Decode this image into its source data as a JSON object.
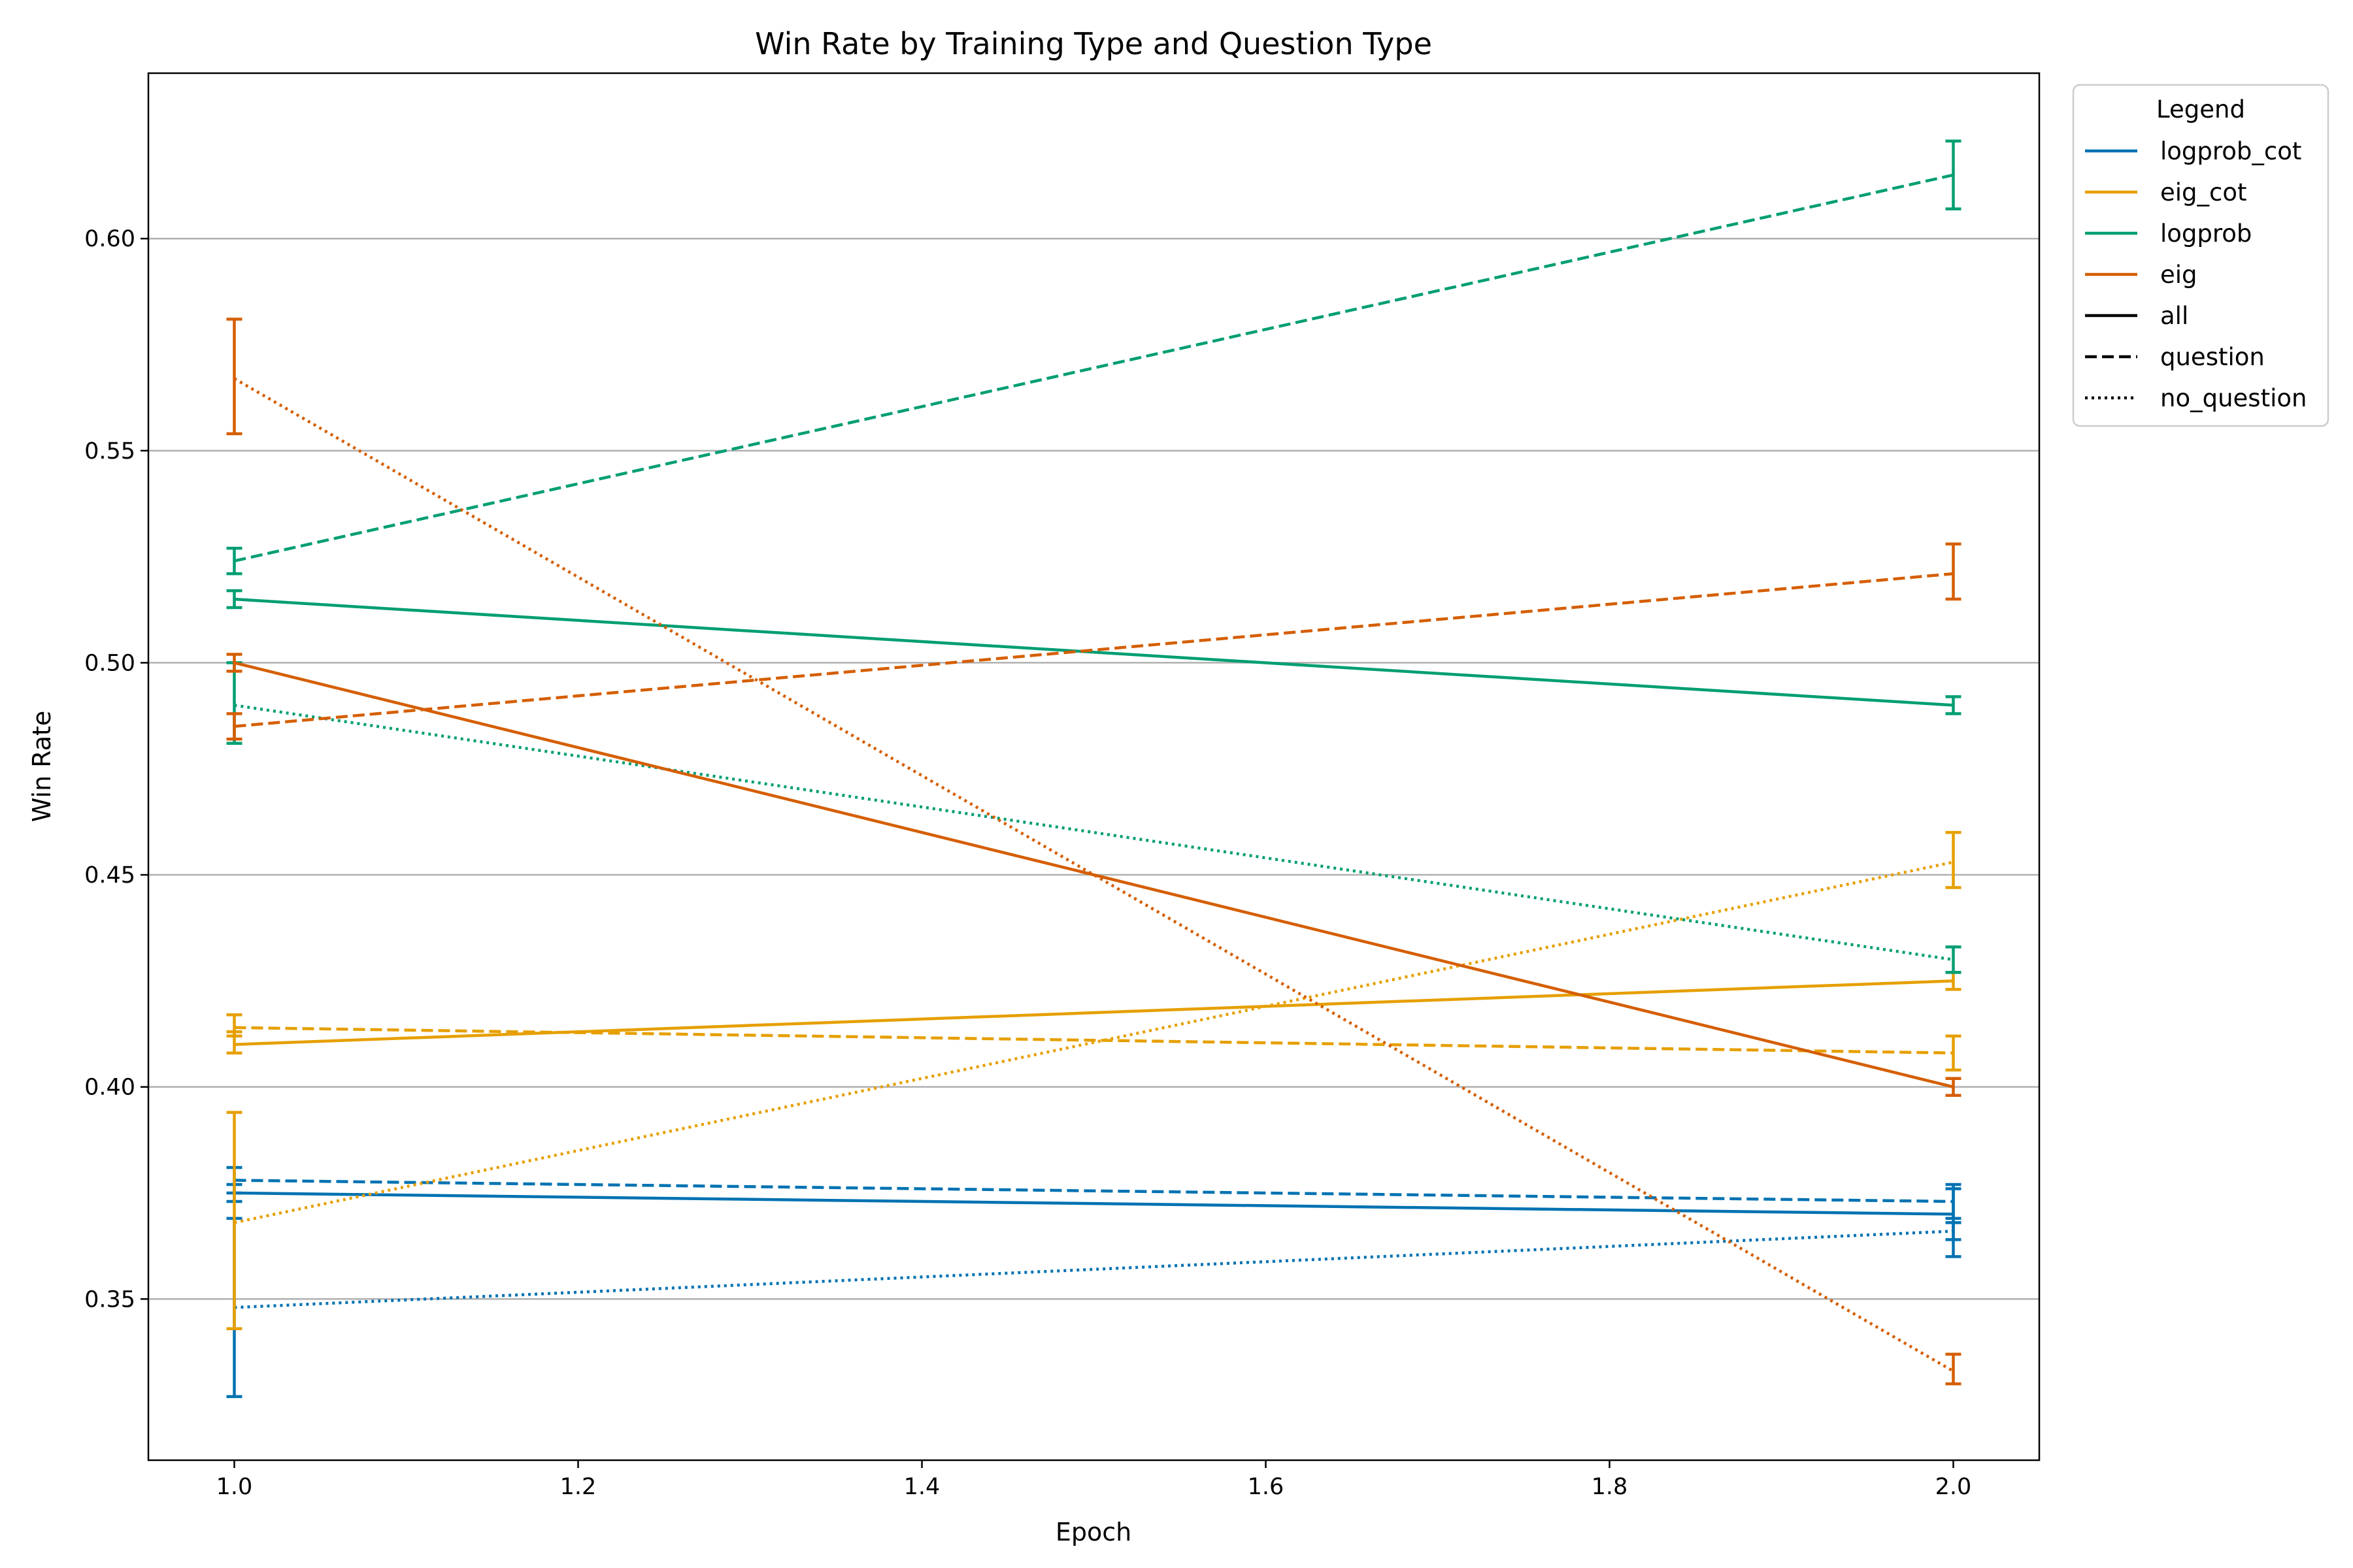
{
  "chart_data": {
    "type": "line",
    "title": "Win Rate by Training Type and Question Type",
    "xlabel": "Epoch",
    "ylabel": "Win Rate",
    "xlim": [
      0.95,
      2.05
    ],
    "ylim": [
      0.312,
      0.639
    ],
    "xticks": [
      "1.0",
      "1.2",
      "1.4",
      "1.6",
      "1.8",
      "2.0"
    ],
    "yticks": [
      "0.35",
      "0.40",
      "0.45",
      "0.50",
      "0.55",
      "0.60"
    ],
    "grid": "horizontal",
    "legend": {
      "title": "Legend",
      "placement": "outside-top-right",
      "colors": [
        {
          "label": "logprob_cot",
          "color": "#0072B2"
        },
        {
          "label": "eig_cot",
          "color": "#E69F00"
        },
        {
          "label": "logprob",
          "color": "#009E73"
        },
        {
          "label": "eig",
          "color": "#D55E00"
        }
      ],
      "styles": [
        {
          "label": "all",
          "dash": "solid"
        },
        {
          "label": "question",
          "dash": "dashed"
        },
        {
          "label": "no_question",
          "dash": "dotted"
        }
      ]
    },
    "series": [
      {
        "training": "logprob_cot",
        "question_type": "all",
        "color": "#0072B2",
        "dash": "solid",
        "x": [
          1.0,
          2.0
        ],
        "y": [
          0.375,
          0.37
        ],
        "err_low": [
          0.373,
          0.36
        ],
        "err_high": [
          0.377,
          0.377
        ]
      },
      {
        "training": "logprob_cot",
        "question_type": "question",
        "color": "#0072B2",
        "dash": "dashed",
        "x": [
          1.0,
          2.0
        ],
        "y": [
          0.378,
          0.373
        ],
        "err_low": [
          0.375,
          0.369
        ],
        "err_high": [
          0.381,
          0.376
        ]
      },
      {
        "training": "logprob_cot",
        "question_type": "no_question",
        "color": "#0072B2",
        "dash": "dotted",
        "x": [
          1.0,
          2.0
        ],
        "y": [
          0.348,
          0.366
        ],
        "err_low": [
          0.327,
          0.364
        ],
        "err_high": [
          0.369,
          0.368
        ]
      },
      {
        "training": "eig_cot",
        "question_type": "all",
        "color": "#E69F00",
        "dash": "solid",
        "x": [
          1.0,
          2.0
        ],
        "y": [
          0.41,
          0.425
        ],
        "err_low": [
          0.408,
          0.423
        ],
        "err_high": [
          0.413,
          0.427
        ]
      },
      {
        "training": "eig_cot",
        "question_type": "question",
        "color": "#E69F00",
        "dash": "dashed",
        "x": [
          1.0,
          2.0
        ],
        "y": [
          0.414,
          0.408
        ],
        "err_low": [
          0.412,
          0.404
        ],
        "err_high": [
          0.417,
          0.412
        ]
      },
      {
        "training": "eig_cot",
        "question_type": "no_question",
        "color": "#E69F00",
        "dash": "dotted",
        "x": [
          1.0,
          2.0
        ],
        "y": [
          0.368,
          0.453
        ],
        "err_low": [
          0.343,
          0.447
        ],
        "err_high": [
          0.394,
          0.46
        ]
      },
      {
        "training": "logprob",
        "question_type": "all",
        "color": "#009E73",
        "dash": "solid",
        "x": [
          1.0,
          2.0
        ],
        "y": [
          0.515,
          0.49
        ],
        "err_low": [
          0.513,
          0.488
        ],
        "err_high": [
          0.517,
          0.492
        ]
      },
      {
        "training": "logprob",
        "question_type": "question",
        "color": "#009E73",
        "dash": "dashed",
        "x": [
          1.0,
          2.0
        ],
        "y": [
          0.524,
          0.615
        ],
        "err_low": [
          0.521,
          0.607
        ],
        "err_high": [
          0.527,
          0.623
        ]
      },
      {
        "training": "logprob",
        "question_type": "no_question",
        "color": "#009E73",
        "dash": "dotted",
        "x": [
          1.0,
          2.0
        ],
        "y": [
          0.49,
          0.43
        ],
        "err_low": [
          0.481,
          0.427
        ],
        "err_high": [
          0.5,
          0.433
        ]
      },
      {
        "training": "eig",
        "question_type": "all",
        "color": "#D55E00",
        "dash": "solid",
        "x": [
          1.0,
          2.0
        ],
        "y": [
          0.5,
          0.4
        ],
        "err_low": [
          0.498,
          0.398
        ],
        "err_high": [
          0.502,
          0.402
        ]
      },
      {
        "training": "eig",
        "question_type": "question",
        "color": "#D55E00",
        "dash": "dashed",
        "x": [
          1.0,
          2.0
        ],
        "y": [
          0.485,
          0.521
        ],
        "err_low": [
          0.482,
          0.515
        ],
        "err_high": [
          0.488,
          0.528
        ]
      },
      {
        "training": "eig",
        "question_type": "no_question",
        "color": "#D55E00",
        "dash": "dotted",
        "x": [
          1.0,
          2.0
        ],
        "y": [
          0.567,
          0.333
        ],
        "err_low": [
          0.554,
          0.33
        ],
        "err_high": [
          0.581,
          0.337
        ]
      }
    ]
  }
}
